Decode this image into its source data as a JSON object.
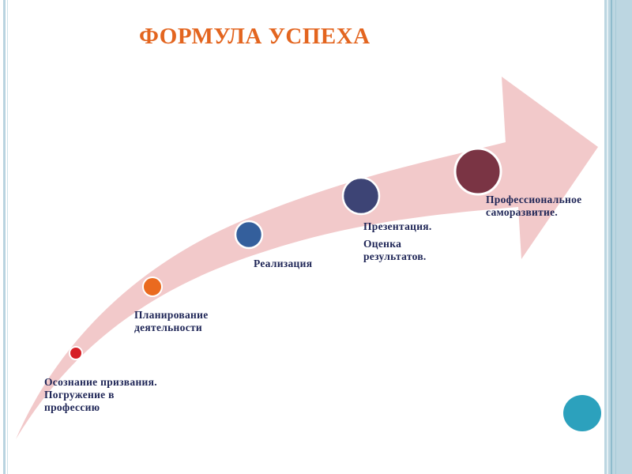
{
  "title": "ФОРМУЛА УСПЕХА",
  "steps": [
    {
      "lines": [
        "Осознание призвания.",
        "Погружение в",
        "профессию"
      ],
      "color": "#d61f26"
    },
    {
      "lines": [
        "Планирование",
        "деятельности"
      ],
      "color": "#ea6a1f"
    },
    {
      "lines": [
        "Реализация"
      ],
      "color": "#345f9c"
    },
    {
      "lines": [
        "Презентация.",
        "Оценка",
        "результатов."
      ],
      "color": "#3d4475"
    },
    {
      "lines": [
        "Профессиональное",
        "саморазвитие."
      ],
      "color": "#7a3444"
    }
  ],
  "colors": {
    "arrow": "#f2c9ca",
    "title": "#e3651f",
    "text": "#1e2556",
    "decor_circle": "#2ca1bd",
    "border": "#bcd6e1"
  }
}
